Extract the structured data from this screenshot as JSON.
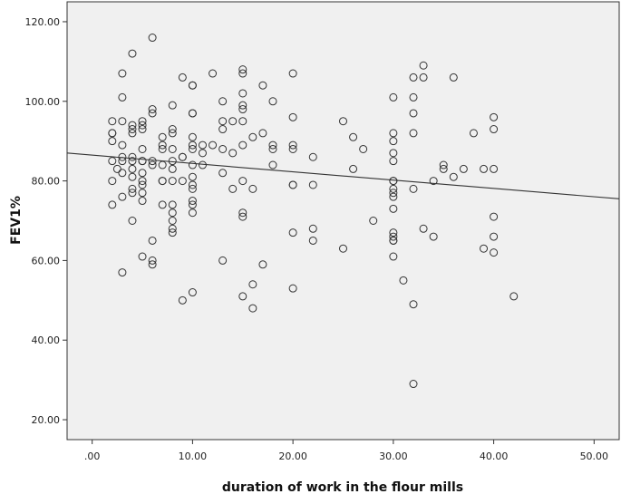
{
  "chart_data": {
    "type": "scatter",
    "title": "",
    "xlabel": "duration of work in the flour mills",
    "ylabel": "FEV1%",
    "xlim": [
      -2.5,
      52.5
    ],
    "ylim": [
      15,
      125
    ],
    "x_ticks": [
      0,
      10,
      20,
      30,
      40,
      50
    ],
    "x_tick_labels": [
      ".00",
      "10.00",
      "20.00",
      "30.00",
      "40.00",
      "50.00"
    ],
    "y_ticks": [
      20,
      40,
      60,
      80,
      100,
      120
    ],
    "y_tick_labels": [
      "20.00",
      "40.00",
      "60.00",
      "80.00",
      "100.00",
      "120.00"
    ],
    "grid": false,
    "plot_background": "#f0f0f0",
    "marker_color": "#333333",
    "fit_line": {
      "type": "linear",
      "x": [
        -2.5,
        52.5
      ],
      "y": [
        87.0,
        75.5
      ],
      "color": "#333333"
    },
    "points": [
      [
        2,
        95
      ],
      [
        2,
        92
      ],
      [
        2,
        92
      ],
      [
        2,
        90
      ],
      [
        2,
        85
      ],
      [
        2,
        80
      ],
      [
        2,
        74
      ],
      [
        2.5,
        83
      ],
      [
        3,
        107
      ],
      [
        3,
        101
      ],
      [
        3,
        95
      ],
      [
        3,
        89
      ],
      [
        3,
        86
      ],
      [
        3,
        85
      ],
      [
        3,
        82
      ],
      [
        3,
        76
      ],
      [
        3,
        57
      ],
      [
        4,
        112
      ],
      [
        4,
        94
      ],
      [
        4,
        93
      ],
      [
        4,
        92
      ],
      [
        4,
        86
      ],
      [
        4,
        85
      ],
      [
        4,
        83
      ],
      [
        4,
        81
      ],
      [
        4,
        78
      ],
      [
        4,
        77
      ],
      [
        4,
        70
      ],
      [
        5,
        95
      ],
      [
        5,
        94
      ],
      [
        5,
        93
      ],
      [
        5,
        88
      ],
      [
        5,
        85
      ],
      [
        5,
        85
      ],
      [
        5,
        82
      ],
      [
        5,
        80
      ],
      [
        5,
        79
      ],
      [
        5,
        77
      ],
      [
        5,
        75
      ],
      [
        5,
        61
      ],
      [
        6,
        116
      ],
      [
        6,
        98
      ],
      [
        6,
        97
      ],
      [
        6,
        85
      ],
      [
        6,
        84
      ],
      [
        6,
        65
      ],
      [
        6,
        60
      ],
      [
        6,
        59
      ],
      [
        7,
        91
      ],
      [
        7,
        89
      ],
      [
        7,
        88
      ],
      [
        7,
        84
      ],
      [
        7,
        80
      ],
      [
        7,
        80
      ],
      [
        7,
        74
      ],
      [
        8,
        99
      ],
      [
        8,
        93
      ],
      [
        8,
        92
      ],
      [
        8,
        88
      ],
      [
        8,
        85
      ],
      [
        8,
        83
      ],
      [
        8,
        80
      ],
      [
        8,
        74
      ],
      [
        8,
        70
      ],
      [
        8,
        68
      ],
      [
        8,
        67
      ],
      [
        8,
        72
      ],
      [
        9,
        106
      ],
      [
        9,
        86
      ],
      [
        9,
        86
      ],
      [
        9,
        80
      ],
      [
        9,
        50
      ],
      [
        10,
        104
      ],
      [
        10,
        104
      ],
      [
        10,
        97
      ],
      [
        10,
        97
      ],
      [
        10,
        91
      ],
      [
        10,
        89
      ],
      [
        10,
        88
      ],
      [
        10,
        84
      ],
      [
        10,
        81
      ],
      [
        10,
        79
      ],
      [
        10,
        78
      ],
      [
        10,
        75
      ],
      [
        10,
        74
      ],
      [
        10,
        72
      ],
      [
        10,
        52
      ],
      [
        11,
        89
      ],
      [
        11,
        87
      ],
      [
        11,
        84
      ],
      [
        12,
        107
      ],
      [
        12,
        89
      ],
      [
        13,
        100
      ],
      [
        13,
        95
      ],
      [
        13,
        93
      ],
      [
        13,
        88
      ],
      [
        13,
        82
      ],
      [
        13,
        60
      ],
      [
        14,
        95
      ],
      [
        14,
        87
      ],
      [
        14,
        78
      ],
      [
        15,
        108
      ],
      [
        15,
        107
      ],
      [
        15,
        102
      ],
      [
        15,
        99
      ],
      [
        15,
        98
      ],
      [
        15,
        95
      ],
      [
        15,
        89
      ],
      [
        15,
        80
      ],
      [
        15,
        72
      ],
      [
        15,
        71
      ],
      [
        15,
        51
      ],
      [
        16,
        91
      ],
      [
        16,
        78
      ],
      [
        16,
        54
      ],
      [
        16,
        48
      ],
      [
        17,
        104
      ],
      [
        17,
        92
      ],
      [
        17,
        59
      ],
      [
        18,
        100
      ],
      [
        18,
        89
      ],
      [
        18,
        88
      ],
      [
        18,
        84
      ],
      [
        20,
        107
      ],
      [
        20,
        96
      ],
      [
        20,
        89
      ],
      [
        20,
        88
      ],
      [
        20,
        79
      ],
      [
        20,
        79
      ],
      [
        20,
        67
      ],
      [
        20,
        53
      ],
      [
        22,
        86
      ],
      [
        22,
        79
      ],
      [
        22,
        68
      ],
      [
        22,
        65
      ],
      [
        25,
        95
      ],
      [
        25,
        63
      ],
      [
        26,
        91
      ],
      [
        26,
        83
      ],
      [
        27,
        88
      ],
      [
        28,
        70
      ],
      [
        30,
        101
      ],
      [
        30,
        92
      ],
      [
        30,
        90
      ],
      [
        30,
        87
      ],
      [
        30,
        85
      ],
      [
        30,
        80
      ],
      [
        30,
        80
      ],
      [
        30,
        78
      ],
      [
        30,
        77
      ],
      [
        30,
        76
      ],
      [
        30,
        73
      ],
      [
        30,
        67
      ],
      [
        30,
        66
      ],
      [
        30,
        65
      ],
      [
        30,
        65
      ],
      [
        30,
        61
      ],
      [
        31,
        55
      ],
      [
        32,
        106
      ],
      [
        32,
        101
      ],
      [
        32,
        97
      ],
      [
        32,
        92
      ],
      [
        32,
        78
      ],
      [
        32,
        49
      ],
      [
        32,
        29
      ],
      [
        33,
        109
      ],
      [
        33,
        106
      ],
      [
        33,
        68
      ],
      [
        34,
        80
      ],
      [
        34,
        66
      ],
      [
        35,
        84
      ],
      [
        35,
        83
      ],
      [
        36,
        106
      ],
      [
        36,
        81
      ],
      [
        37,
        83
      ],
      [
        38,
        92
      ],
      [
        39,
        83
      ],
      [
        39,
        63
      ],
      [
        40,
        96
      ],
      [
        40,
        93
      ],
      [
        40,
        83
      ],
      [
        40,
        71
      ],
      [
        40,
        66
      ],
      [
        40,
        62
      ],
      [
        42,
        51
      ]
    ]
  }
}
